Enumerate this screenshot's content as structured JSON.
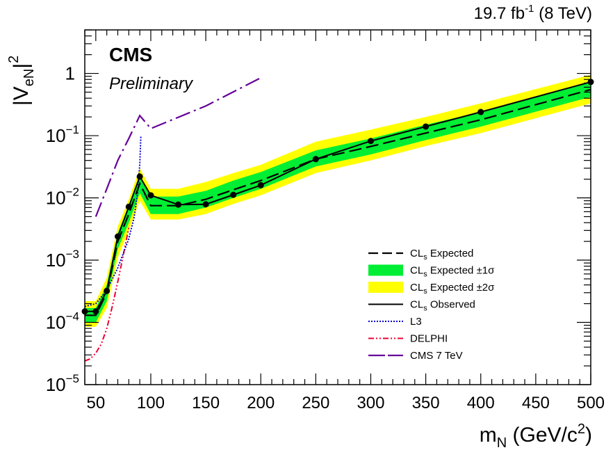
{
  "header": {
    "lumi": "19.7 fb",
    "lumi_exp": "-1",
    "energy": " (8 TeV)"
  },
  "labels": {
    "experiment": "CMS",
    "status": "Preliminary",
    "xlabel_main": "m",
    "xlabel_sub": "N",
    "xlabel_unit": " (GeV/c",
    "xlabel_exp": "2",
    "xlabel_close": ")",
    "ylabel_bar": "|V",
    "ylabel_sub": "eN",
    "ylabel_close": "|",
    "ylabel_exp": "2"
  },
  "legend": {
    "entries": [
      {
        "prefix": "CL",
        "sub": "s",
        "text": " Expected"
      },
      {
        "prefix": "CL",
        "sub": "s",
        "text": " Expected ±1σ"
      },
      {
        "prefix": "CL",
        "sub": "s",
        "text": " Expected ±2σ"
      },
      {
        "prefix": "CL",
        "sub": "s",
        "text": " Observed"
      },
      {
        "prefix": "",
        "sub": "",
        "text": "L3"
      },
      {
        "prefix": "",
        "sub": "",
        "text": "DELPHI"
      },
      {
        "prefix": "",
        "sub": "",
        "text": "CMS 7 TeV"
      }
    ]
  },
  "colors": {
    "band1": "#00ee33",
    "band2": "#ffff00",
    "observed": "#000000",
    "expected": "#000000",
    "l3": "#0000cc",
    "delphi": "#ee0033",
    "cms7": "#660099"
  },
  "chart_data": {
    "type": "line",
    "xlim": [
      40,
      500
    ],
    "ylim": [
      1e-05,
      5
    ],
    "yscale": "log",
    "x_ticks": [
      50,
      100,
      150,
      200,
      250,
      300,
      350,
      400,
      450,
      500
    ],
    "y_ticks": [
      {
        "base": "10",
        "exp": "−5",
        "value": 1e-05
      },
      {
        "base": "10",
        "exp": "−4",
        "value": 0.0001
      },
      {
        "base": "10",
        "exp": "−3",
        "value": 0.001
      },
      {
        "base": "10",
        "exp": "−2",
        "value": 0.01
      },
      {
        "base": "10",
        "exp": "−1",
        "value": 0.1
      },
      {
        "base": "1",
        "exp": "",
        "value": 1
      }
    ],
    "grid": false,
    "legend_position": "bottom-right",
    "series": [
      {
        "name": "CLs Observed",
        "x": [
          40,
          50,
          60,
          70,
          80,
          90,
          100,
          125,
          150,
          175,
          200,
          250,
          300,
          350,
          400,
          500
        ],
        "y": [
          0.00015,
          0.00015,
          0.00032,
          0.0024,
          0.0072,
          0.022,
          0.011,
          0.0078,
          0.0079,
          0.0112,
          0.016,
          0.042,
          0.082,
          0.14,
          0.24,
          0.73
        ]
      },
      {
        "name": "CLs Expected",
        "x": [
          40,
          50,
          60,
          70,
          80,
          90,
          100,
          125,
          150,
          175,
          200,
          250,
          300,
          350,
          400,
          500
        ],
        "y": [
          0.00013,
          0.00013,
          0.0003,
          0.002,
          0.0055,
          0.017,
          0.0075,
          0.0075,
          0.0095,
          0.0135,
          0.019,
          0.042,
          0.067,
          0.11,
          0.18,
          0.55
        ]
      },
      {
        "name": "CLs Expected ±1σ",
        "x": [
          40,
          50,
          60,
          70,
          80,
          90,
          100,
          125,
          150,
          175,
          200,
          250,
          300,
          350,
          400,
          500
        ],
        "low": [
          0.0001,
          0.0001,
          0.00022,
          0.0015,
          0.004,
          0.012,
          0.0055,
          0.0055,
          0.007,
          0.01,
          0.014,
          0.032,
          0.05,
          0.085,
          0.14,
          0.42
        ],
        "high": [
          0.00017,
          0.00017,
          0.0004,
          0.0027,
          0.0075,
          0.023,
          0.0105,
          0.0105,
          0.013,
          0.019,
          0.026,
          0.058,
          0.09,
          0.15,
          0.24,
          0.72
        ]
      },
      {
        "name": "CLs Expected ±2σ",
        "x": [
          40,
          50,
          60,
          70,
          80,
          90,
          100,
          125,
          150,
          175,
          200,
          250,
          300,
          350,
          400,
          500
        ],
        "low": [
          8.5e-05,
          8.5e-05,
          0.00017,
          0.0011,
          0.003,
          0.009,
          0.0045,
          0.0045,
          0.0055,
          0.008,
          0.011,
          0.025,
          0.04,
          0.068,
          0.11,
          0.33
        ],
        "high": [
          0.00022,
          0.00022,
          0.00052,
          0.0035,
          0.0095,
          0.03,
          0.014,
          0.014,
          0.018,
          0.025,
          0.034,
          0.08,
          0.125,
          0.2,
          0.33,
          0.95
        ]
      },
      {
        "name": "L3",
        "x": [
          40,
          50,
          60,
          70,
          80,
          85,
          88,
          90,
          91
        ],
        "y": [
          0.00018,
          0.0002,
          0.00033,
          0.00075,
          0.0022,
          0.005,
          0.012,
          0.035,
          0.1
        ]
      },
      {
        "name": "DELPHI",
        "x": [
          40,
          45,
          50,
          55,
          60,
          65,
          70,
          75,
          80
        ],
        "y": [
          2.4e-05,
          2.6e-05,
          3.2e-05,
          4.5e-05,
          8e-05,
          0.00018,
          0.00045,
          0.0012,
          0.0033
        ]
      },
      {
        "name": "CMS 7 TeV",
        "x": [
          50,
          60,
          70,
          80,
          90,
          100,
          150,
          200
        ],
        "y": [
          0.005,
          0.014,
          0.04,
          0.09,
          0.21,
          0.13,
          0.3,
          0.85
        ]
      }
    ]
  }
}
